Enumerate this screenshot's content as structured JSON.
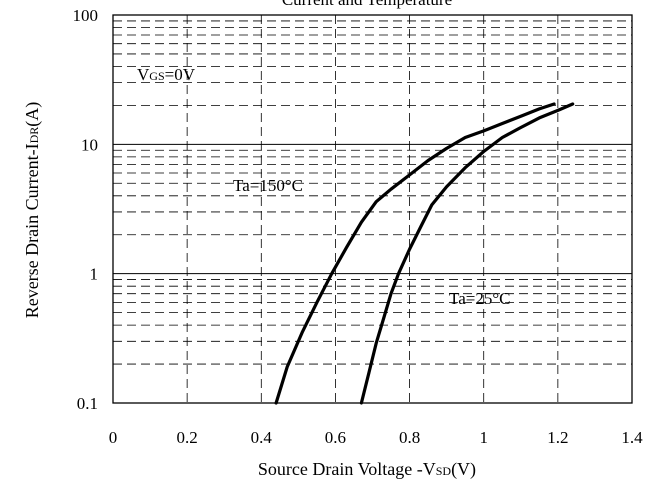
{
  "chart_data": {
    "type": "line",
    "title": "Current and Temperature",
    "xlabel": {
      "prefix": "Source Drain Voltage -V",
      "sub": "SD",
      "suffix": "(V)"
    },
    "ylabel": {
      "prefix": "Reverse Drain Current-I",
      "sub": "DR",
      "suffix": "(A)"
    },
    "x_scale": "linear",
    "y_scale": "log",
    "xlim": [
      0,
      1.4
    ],
    "ylim": [
      0.1,
      100
    ],
    "x_ticks": [
      0,
      0.2,
      0.4,
      0.6,
      0.8,
      1,
      1.2,
      1.4
    ],
    "x_tick_labels": [
      "0",
      "0.2",
      "0.4",
      "0.6",
      "0.8",
      "1",
      "1.2",
      "1.4"
    ],
    "y_ticks": [
      0.1,
      1,
      10,
      100
    ],
    "y_tick_labels": [
      "0.1",
      "1",
      "10",
      "100"
    ],
    "grid": "solid major decades, dashed minor and x gridlines",
    "legend": "none",
    "line_color": "#000000",
    "annotations": {
      "vgs": {
        "prefix": "V",
        "sub": "GS",
        "suffix": "=0V"
      },
      "ta150": "Ta=150°C",
      "ta25": "Ta=25°C"
    },
    "series": [
      {
        "name": "Ta=150°C",
        "x": [
          0.44,
          0.47,
          0.51,
          0.55,
          0.59,
          0.63,
          0.67,
          0.71,
          0.75,
          0.8,
          0.85,
          0.9,
          0.95,
          1.0,
          1.05,
          1.1,
          1.15,
          1.19
        ],
        "y": [
          0.1,
          0.19,
          0.35,
          0.6,
          1.0,
          1.6,
          2.5,
          3.6,
          4.5,
          5.8,
          7.5,
          9.3,
          11.3,
          12.7,
          14.5,
          16.5,
          18.8,
          20.5
        ]
      },
      {
        "name": "Ta=25°C",
        "x": [
          0.67,
          0.69,
          0.71,
          0.73,
          0.75,
          0.77,
          0.8,
          0.83,
          0.86,
          0.9,
          0.95,
          1.0,
          1.05,
          1.1,
          1.15,
          1.2,
          1.24
        ],
        "y": [
          0.1,
          0.17,
          0.29,
          0.45,
          0.7,
          1.0,
          1.55,
          2.3,
          3.4,
          4.7,
          6.6,
          8.8,
          11.3,
          13.5,
          16.0,
          18.3,
          20.5
        ]
      }
    ]
  }
}
